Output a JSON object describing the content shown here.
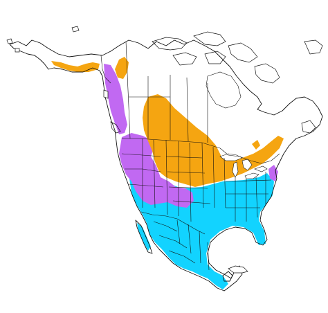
{
  "map": {
    "colors": {
      "breeding": "#f5a511",
      "year_round": "#c169f2",
      "nonbreeding": "#12d3ff",
      "land_outline": "#111111",
      "background": "#ffffff"
    },
    "regions": [
      {
        "key": "breeding",
        "color": "#f5a511"
      },
      {
        "key": "year_round",
        "color": "#c169f2"
      },
      {
        "key": "nonbreeding",
        "color": "#12d3ff"
      }
    ]
  }
}
